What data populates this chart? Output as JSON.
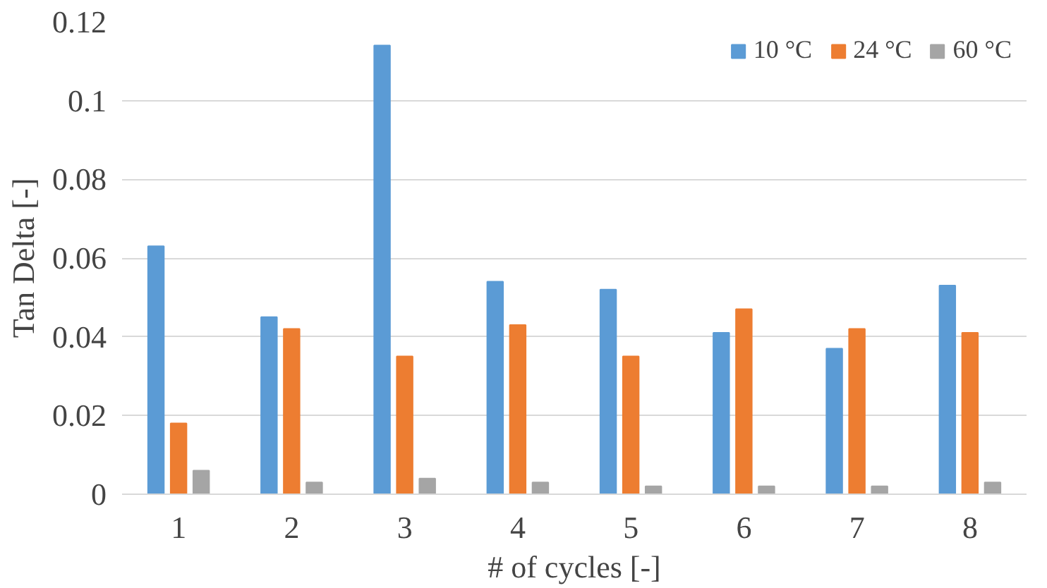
{
  "chart_data": {
    "type": "bar",
    "xlabel": "# of cycles [-]",
    "ylabel": "Tan Delta [-]",
    "categories": [
      "1",
      "2",
      "3",
      "4",
      "5",
      "6",
      "7",
      "8"
    ],
    "series": [
      {
        "name": "10 °C",
        "color": "#5b9bd5",
        "values": [
          0.063,
          0.045,
          0.114,
          0.054,
          0.052,
          0.041,
          0.037,
          0.053
        ]
      },
      {
        "name": "24 °C",
        "color": "#ed7d31",
        "values": [
          0.018,
          0.042,
          0.035,
          0.043,
          0.035,
          0.047,
          0.042,
          0.041
        ]
      },
      {
        "name": "60 °C",
        "color": "#a5a5a5",
        "values": [
          0.006,
          0.003,
          0.004,
          0.003,
          0.002,
          0.002,
          0.002,
          0.003
        ]
      }
    ],
    "ylim": [
      0,
      0.12
    ],
    "yticks": [
      0,
      0.02,
      0.04,
      0.06,
      0.08,
      0.1,
      0.12
    ],
    "grid": "y",
    "legend": "top right"
  }
}
